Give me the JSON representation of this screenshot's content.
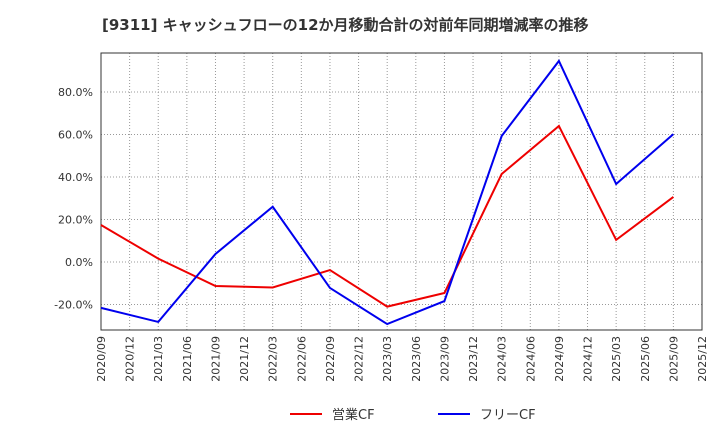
{
  "chart_data": {
    "type": "line",
    "title": "[9311]  キャッシュフローの12か月移動合計の対前年同期増減率の推移",
    "xlabel": "",
    "ylabel": "",
    "ylim": [
      -32,
      98
    ],
    "yticks": [
      -20,
      0,
      20,
      40,
      60,
      80
    ],
    "ytick_labels": [
      "-20.0%",
      "0.0%",
      "20.0%",
      "40.0%",
      "60.0%",
      "80.0%"
    ],
    "x_ticks": [
      "2020/09",
      "2020/12",
      "2021/03",
      "2021/06",
      "2021/09",
      "2021/12",
      "2022/03",
      "2022/06",
      "2022/09",
      "2022/12",
      "2023/03",
      "2023/06",
      "2023/09",
      "2023/12",
      "2024/03",
      "2024/06",
      "2024/09",
      "2024/12",
      "2025/03",
      "2025/06",
      "2025/09",
      "2025/12"
    ],
    "grid": true,
    "legend_position": "bottom",
    "series": [
      {
        "name": "営業CF",
        "color": "#ee0000",
        "x": [
          "2020/09",
          "2021/03",
          "2021/09",
          "2022/03",
          "2022/09",
          "2023/03",
          "2023/09",
          "2024/03",
          "2024/09",
          "2025/03",
          "2025/09"
        ],
        "values": [
          17.4,
          1.6,
          -11.3,
          -12.0,
          -3.8,
          -21.0,
          -14.6,
          41.4,
          64.0,
          10.4,
          30.6
        ]
      },
      {
        "name": "フリーCF",
        "color": "#0000ee",
        "x": [
          "2020/09",
          "2021/03",
          "2021/09",
          "2022/03",
          "2022/09",
          "2023/03",
          "2023/09",
          "2024/03",
          "2024/09",
          "2025/03",
          "2025/09"
        ],
        "values": [
          -21.6,
          -28.2,
          3.8,
          26.0,
          -12.2,
          -29.2,
          -18.4,
          59.3,
          94.6,
          36.7,
          60.2
        ]
      }
    ]
  }
}
